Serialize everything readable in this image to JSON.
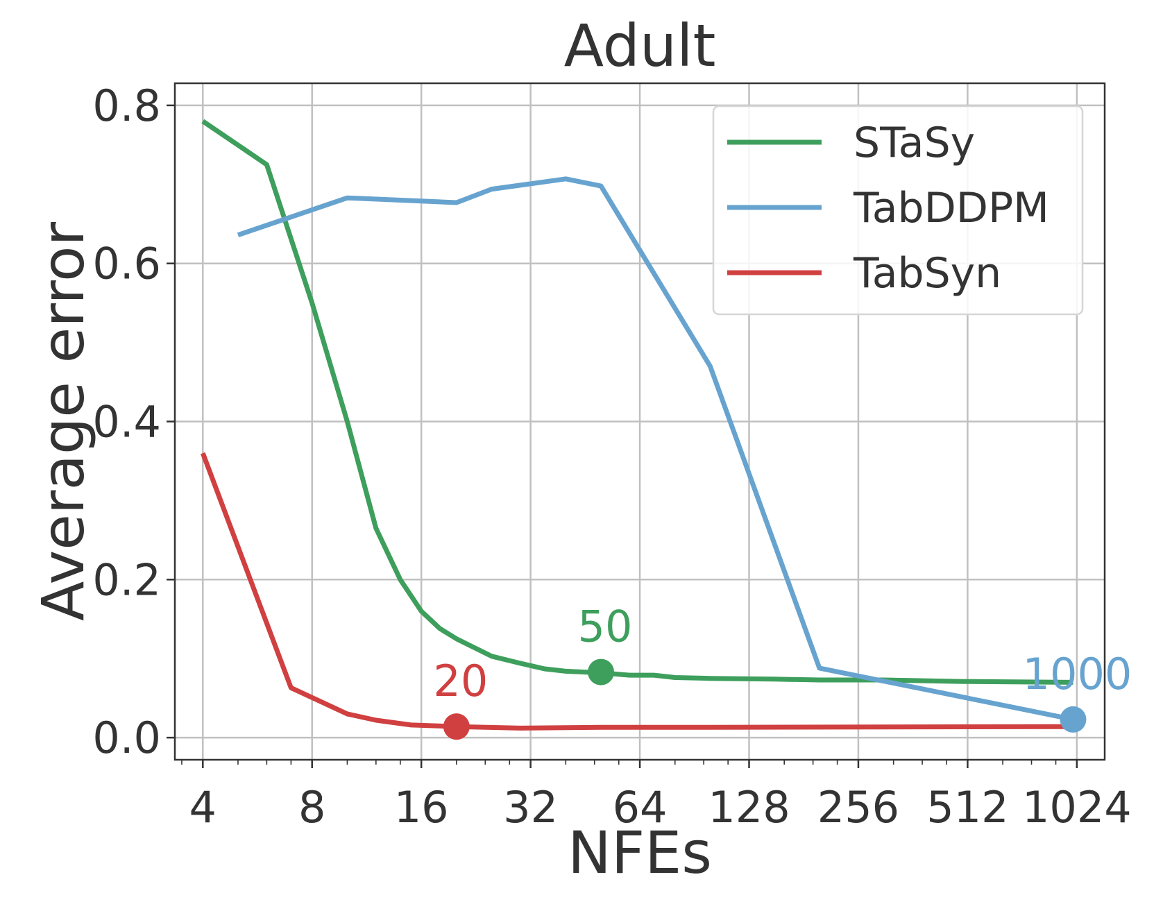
{
  "chart_data": {
    "type": "line",
    "title": "Adult",
    "xlabel": "NFEs",
    "ylabel": "Average error",
    "xscale": "log2",
    "xlim": [
      3.35,
      1222
    ],
    "ylim": [
      -0.028,
      0.828
    ],
    "grid": true,
    "x_ticks": [
      4,
      8,
      16,
      32,
      64,
      128,
      256,
      512,
      1024
    ],
    "x_tick_labels": [
      "4",
      "8",
      "16",
      "32",
      "64",
      "128",
      "256",
      "512",
      "1024"
    ],
    "y_ticks": [
      0.0,
      0.2,
      0.4,
      0.6,
      0.8
    ],
    "y_tick_labels": [
      "0.0",
      "0.2",
      "0.4",
      "0.6",
      "0.8"
    ],
    "legend_position": "top-right",
    "series": [
      {
        "name": "STaSy",
        "color": "#3e9f5d",
        "x": [
          4,
          6,
          8,
          10,
          12,
          14,
          16,
          18,
          20,
          25,
          30,
          35,
          40,
          45,
          50,
          60,
          70,
          80,
          100,
          150,
          200,
          300,
          500,
          1000
        ],
        "y": [
          0.78,
          0.725,
          0.55,
          0.4,
          0.265,
          0.2,
          0.16,
          0.138,
          0.125,
          0.103,
          0.094,
          0.087,
          0.084,
          0.083,
          0.082,
          0.079,
          0.079,
          0.076,
          0.075,
          0.074,
          0.073,
          0.073,
          0.071,
          0.07
        ]
      },
      {
        "name": "TabDDPM",
        "color": "#67a3cf",
        "x": [
          5,
          10,
          20,
          25,
          30,
          40,
          50,
          100,
          200,
          1000
        ],
        "y": [
          0.636,
          0.683,
          0.677,
          0.694,
          0.699,
          0.707,
          0.698,
          0.47,
          0.088,
          0.023
        ]
      },
      {
        "name": "TabSyn",
        "color": "#d04040",
        "x": [
          4,
          7,
          10,
          12,
          15,
          20,
          30,
          50,
          100,
          1000
        ],
        "y": [
          0.36,
          0.063,
          0.03,
          0.022,
          0.016,
          0.014,
          0.012,
          0.013,
          0.013,
          0.014
        ]
      }
    ],
    "annotations": [
      {
        "series": "TabSyn",
        "x": 20,
        "y": 0.014,
        "label": "20",
        "color": "#d04040"
      },
      {
        "series": "STaSy",
        "x": 50,
        "y": 0.083,
        "label": "50",
        "color": "#3e9f5d"
      },
      {
        "series": "TabDDPM",
        "x": 1000,
        "y": 0.023,
        "label": "1000",
        "color": "#67a3cf"
      }
    ]
  }
}
